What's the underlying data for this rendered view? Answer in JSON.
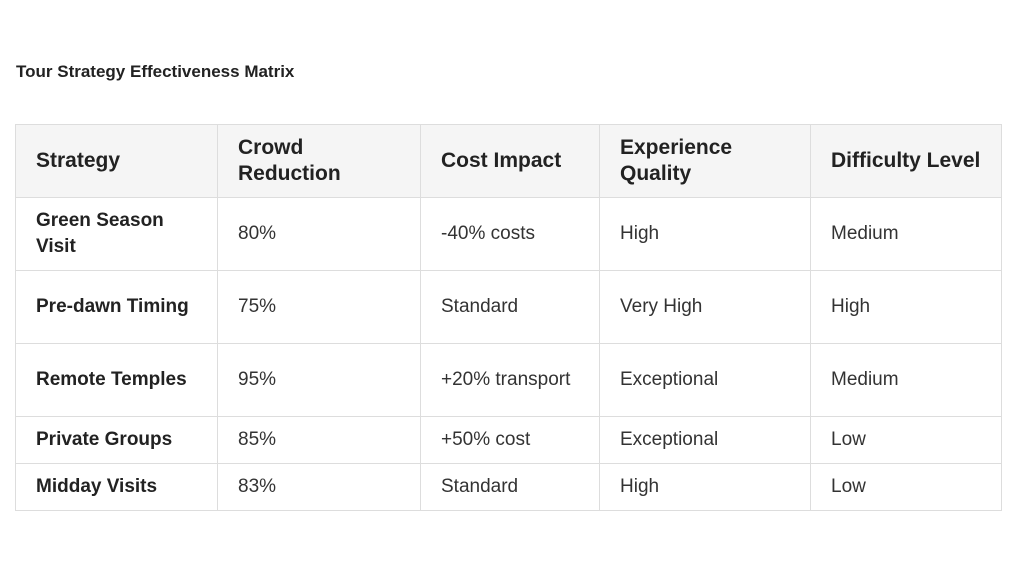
{
  "title": "Tour Strategy Effectiveness Matrix",
  "table": {
    "headers": [
      "Strategy",
      "Crowd Reduction",
      "Cost Impact",
      "Experience Quality",
      "Difficulty Level"
    ],
    "rows": [
      [
        "Green Season Visit",
        "80%",
        "-40% costs",
        "High",
        "Medium"
      ],
      [
        "Pre-dawn Timing",
        "75%",
        "Standard",
        "Very High",
        "High"
      ],
      [
        "Remote Temples",
        "95%",
        "+20% transport",
        "Exceptional",
        "Medium"
      ],
      [
        "Private Groups",
        "85%",
        "+50% cost",
        "Exceptional",
        "Low"
      ],
      [
        "Midday Visits",
        "83%",
        "Standard",
        "High",
        "Low"
      ]
    ]
  }
}
